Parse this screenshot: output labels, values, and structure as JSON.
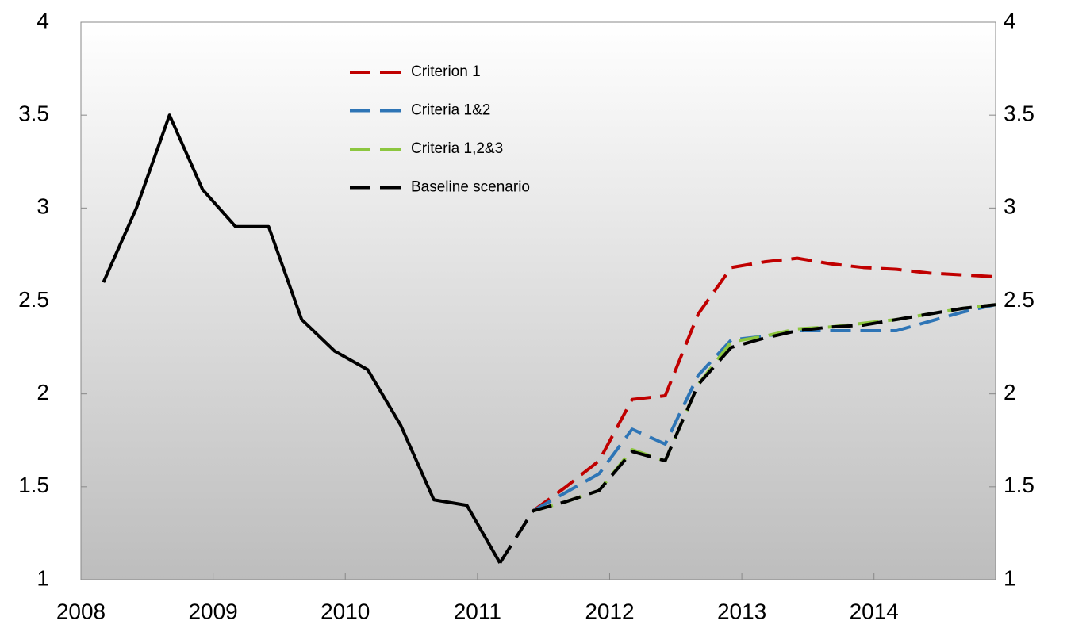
{
  "chart_data": {
    "type": "line",
    "x": [
      2008.17,
      2008.42,
      2008.67,
      2008.92,
      2009.17,
      2009.42,
      2009.67,
      2009.92,
      2010.17,
      2010.42,
      2010.67,
      2010.92,
      2011.17,
      2011.42,
      2011.67,
      2011.92,
      2012.17,
      2012.42,
      2012.67,
      2012.92,
      2013.17,
      2013.42,
      2013.67,
      2013.92,
      2014.17,
      2014.42,
      2014.67,
      2014.92
    ],
    "series": [
      {
        "color": "#000000",
        "dash": false,
        "values": [
          2.6,
          3.0,
          3.5,
          3.1,
          2.9,
          2.9,
          2.4,
          2.23,
          2.13,
          1.83,
          1.43,
          1.4,
          1.09,
          null,
          null,
          null,
          null,
          null,
          null,
          null,
          null,
          null,
          null,
          null,
          null,
          null,
          null,
          null
        ]
      },
      {
        "name": "Criterion 1",
        "color": "#c00000",
        "dash": true,
        "values": [
          null,
          null,
          null,
          null,
          null,
          null,
          null,
          null,
          null,
          null,
          null,
          null,
          null,
          1.37,
          1.5,
          1.64,
          1.97,
          1.99,
          2.43,
          2.68,
          2.71,
          2.73,
          2.7,
          2.68,
          2.67,
          2.65,
          2.64,
          2.63
        ]
      },
      {
        "name": "Criteria 1&2",
        "color": "#2e75b6",
        "dash": true,
        "values": [
          null,
          null,
          null,
          null,
          null,
          null,
          null,
          null,
          null,
          null,
          null,
          null,
          null,
          1.37,
          1.47,
          1.57,
          1.81,
          1.73,
          2.1,
          2.29,
          2.31,
          2.34,
          2.34,
          2.34,
          2.34,
          2.39,
          2.44,
          2.48
        ]
      },
      {
        "name": "Criteria 1,2&3",
        "color": "#8cc63f",
        "dash": true,
        "values": [
          null,
          null,
          null,
          null,
          null,
          null,
          null,
          null,
          null,
          null,
          null,
          null,
          null,
          1.37,
          1.42,
          1.48,
          1.7,
          1.64,
          2.05,
          2.28,
          2.31,
          2.35,
          2.36,
          2.38,
          2.4,
          2.43,
          2.46,
          2.48
        ]
      },
      {
        "name": "Baseline scenario",
        "color": "#000000",
        "dash": true,
        "values": [
          null,
          null,
          null,
          null,
          null,
          null,
          null,
          null,
          null,
          null,
          null,
          null,
          1.09,
          1.37,
          1.42,
          1.48,
          1.69,
          1.64,
          2.05,
          2.25,
          2.3,
          2.34,
          2.36,
          2.37,
          2.4,
          2.43,
          2.46,
          2.48
        ]
      }
    ],
    "xlim": [
      2008,
      2014.92
    ],
    "xticks": [
      2008,
      2009,
      2010,
      2011,
      2012,
      2013,
      2014
    ],
    "ylim": [
      1,
      4
    ],
    "yticks": [
      1,
      1.5,
      2,
      2.5,
      3,
      3.5,
      4
    ],
    "y2lim": [
      1,
      4
    ],
    "y2ticks": [
      1,
      1.5,
      2,
      2.5,
      3,
      3.5,
      4
    ],
    "hline": 2.5
  }
}
